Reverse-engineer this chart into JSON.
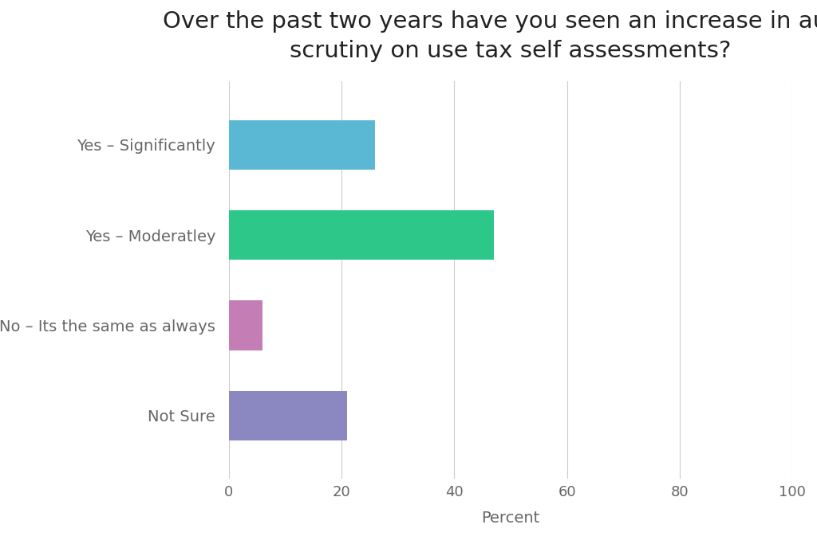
{
  "title": "Over the past two years have you seen an increase in audit\nscrutiny on use tax self assessments?",
  "categories": [
    "Yes – Significantly",
    "Yes – Moderatley",
    "No – Its the same as always",
    "Not Sure"
  ],
  "values": [
    26,
    47,
    6,
    21
  ],
  "bar_colors": [
    "#5BB8D4",
    "#2DC78A",
    "#C47DB5",
    "#8B87C0"
  ],
  "xlabel": "Percent",
  "xlim": [
    0,
    100
  ],
  "xticks": [
    0,
    20,
    40,
    60,
    80,
    100
  ],
  "background_color": "#ffffff",
  "grid_color": "#cccccc",
  "title_fontsize": 21,
  "label_fontsize": 14,
  "tick_fontsize": 13,
  "xlabel_fontsize": 14,
  "bar_height": 0.55,
  "title_color": "#222222",
  "label_color": "#666666",
  "tick_color": "#666666"
}
